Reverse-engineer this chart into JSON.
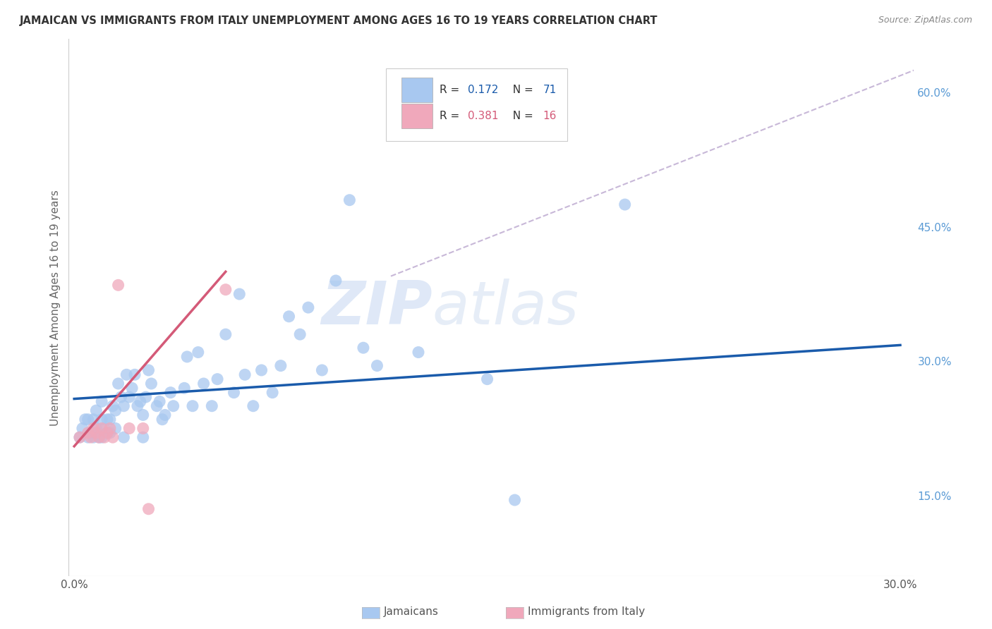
{
  "title": "JAMAICAN VS IMMIGRANTS FROM ITALY UNEMPLOYMENT AMONG AGES 16 TO 19 YEARS CORRELATION CHART",
  "source": "Source: ZipAtlas.com",
  "ylabel": "Unemployment Among Ages 16 to 19 years",
  "x_tick_labels": [
    "0.0%",
    "",
    "",
    "",
    "",
    "",
    "30.0%"
  ],
  "x_tick_vals": [
    0.0,
    0.05,
    0.1,
    0.15,
    0.2,
    0.25,
    0.3
  ],
  "y_tick_labels": [
    "15.0%",
    "30.0%",
    "45.0%",
    "60.0%"
  ],
  "y_tick_vals": [
    0.15,
    0.3,
    0.45,
    0.6
  ],
  "xlim": [
    -0.002,
    0.305
  ],
  "ylim": [
    0.06,
    0.66
  ],
  "color_blue": "#A8C8F0",
  "color_pink": "#F0A8BB",
  "color_line_blue": "#1A5BAB",
  "color_line_pink": "#D45A78",
  "color_dashed": "#C8B8D8",
  "watermark_zip": "ZIP",
  "watermark_atlas": "atlas",
  "blue_x": [
    0.002,
    0.003,
    0.004,
    0.005,
    0.005,
    0.006,
    0.007,
    0.007,
    0.008,
    0.008,
    0.009,
    0.01,
    0.01,
    0.01,
    0.011,
    0.012,
    0.012,
    0.013,
    0.013,
    0.014,
    0.015,
    0.015,
    0.016,
    0.017,
    0.018,
    0.018,
    0.019,
    0.02,
    0.021,
    0.022,
    0.023,
    0.024,
    0.025,
    0.025,
    0.026,
    0.027,
    0.028,
    0.03,
    0.031,
    0.032,
    0.033,
    0.035,
    0.036,
    0.04,
    0.041,
    0.043,
    0.045,
    0.047,
    0.05,
    0.052,
    0.055,
    0.058,
    0.06,
    0.062,
    0.065,
    0.068,
    0.072,
    0.075,
    0.078,
    0.082,
    0.085,
    0.09,
    0.095,
    0.1,
    0.105,
    0.11,
    0.125,
    0.15,
    0.16,
    0.2
  ],
  "blue_y": [
    0.215,
    0.225,
    0.235,
    0.215,
    0.235,
    0.22,
    0.215,
    0.235,
    0.225,
    0.245,
    0.215,
    0.215,
    0.235,
    0.255,
    0.225,
    0.22,
    0.235,
    0.22,
    0.235,
    0.25,
    0.225,
    0.245,
    0.275,
    0.26,
    0.215,
    0.25,
    0.285,
    0.26,
    0.27,
    0.285,
    0.25,
    0.255,
    0.215,
    0.24,
    0.26,
    0.29,
    0.275,
    0.25,
    0.255,
    0.235,
    0.24,
    0.265,
    0.25,
    0.27,
    0.305,
    0.25,
    0.31,
    0.275,
    0.25,
    0.28,
    0.33,
    0.265,
    0.375,
    0.285,
    0.25,
    0.29,
    0.265,
    0.295,
    0.35,
    0.33,
    0.36,
    0.29,
    0.39,
    0.48,
    0.315,
    0.295,
    0.31,
    0.28,
    0.145,
    0.475
  ],
  "pink_x": [
    0.002,
    0.005,
    0.006,
    0.007,
    0.008,
    0.009,
    0.01,
    0.011,
    0.012,
    0.013,
    0.014,
    0.016,
    0.02,
    0.025,
    0.027,
    0.055
  ],
  "pink_y": [
    0.215,
    0.22,
    0.215,
    0.225,
    0.22,
    0.215,
    0.225,
    0.215,
    0.22,
    0.225,
    0.215,
    0.385,
    0.225,
    0.225,
    0.135,
    0.38
  ],
  "blue_line_x": [
    0.0,
    0.3
  ],
  "blue_line_y": [
    0.258,
    0.318
  ],
  "pink_line_x": [
    0.0,
    0.055
  ],
  "pink_line_y": [
    0.205,
    0.4
  ],
  "dashed_line_x": [
    0.115,
    0.305
  ],
  "dashed_line_y": [
    0.395,
    0.625
  ],
  "bg_color": "#FFFFFF",
  "grid_color": "#DDDDDD",
  "title_fontsize": 10.5,
  "source_fontsize": 9
}
